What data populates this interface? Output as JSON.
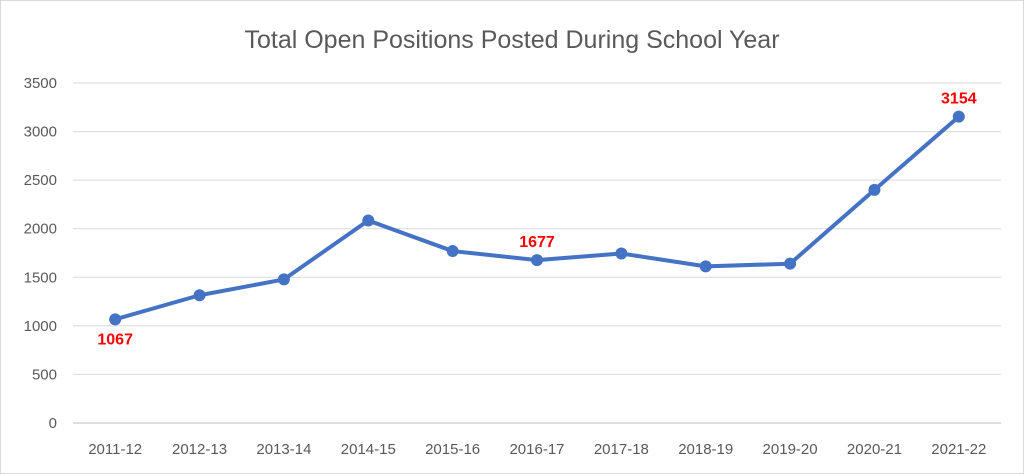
{
  "colors": {
    "line": "#4472C4",
    "gridline": "#d9d9d9",
    "axis": "#bfbfbf",
    "text": "#595959",
    "data_label": "#ff0000"
  },
  "chart_data": {
    "type": "line",
    "title": "Total Open Positions Posted During School Year",
    "xlabel": "",
    "ylabel": "",
    "categories": [
      "2011-12",
      "2012-13",
      "2013-14",
      "2014-15",
      "2015-16",
      "2016-17",
      "2017-18",
      "2018-19",
      "2019-20",
      "2020-21",
      "2021-22"
    ],
    "series": [
      {
        "values": [
          1067,
          1315,
          1478,
          2085,
          1770,
          1677,
          1745,
          1612,
          1640,
          2400,
          3154
        ]
      }
    ],
    "data_labels": [
      {
        "index": 0,
        "text": "1067",
        "placement": "below"
      },
      {
        "index": 5,
        "text": "1677",
        "placement": "above"
      },
      {
        "index": 10,
        "text": "3154",
        "placement": "above"
      }
    ],
    "ylim": [
      0,
      3500
    ],
    "yticks": [
      0,
      500,
      1000,
      1500,
      2000,
      2500,
      3000,
      3500
    ],
    "grid": true,
    "legend": "none",
    "markers": "circle"
  }
}
